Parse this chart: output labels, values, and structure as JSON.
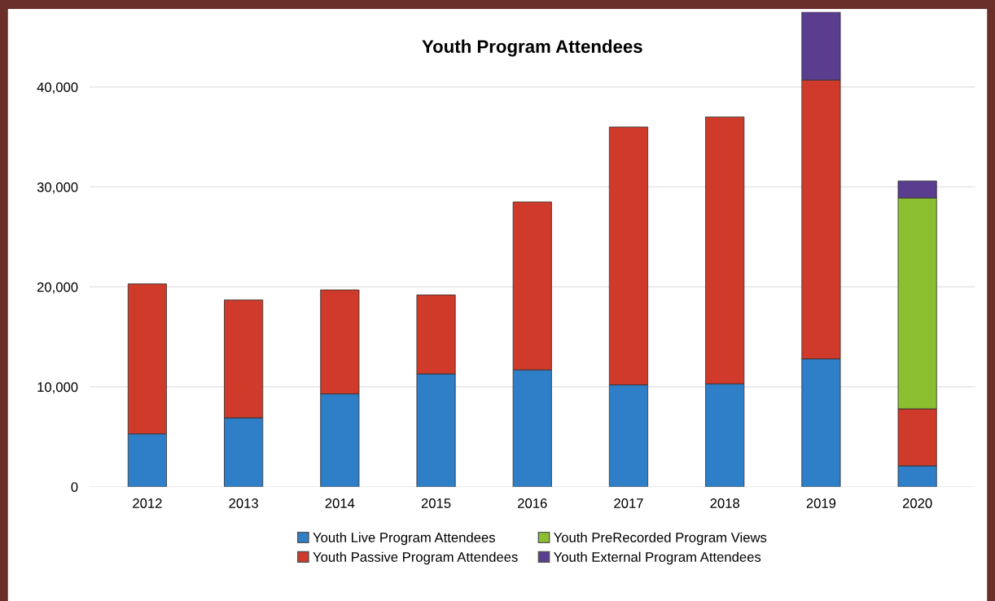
{
  "chart_data": {
    "type": "bar",
    "title": "Youth Program Attendees",
    "stacked": true,
    "categories": [
      "2012",
      "2013",
      "2014",
      "2015",
      "2016",
      "2017",
      "2018",
      "2019",
      "2020"
    ],
    "series": [
      {
        "name": "Youth Live Program Attendees",
        "color": "#2e7fc8",
        "values": [
          5300,
          6900,
          9300,
          11300,
          11700,
          10200,
          10300,
          12800,
          2100
        ]
      },
      {
        "name": "Youth Passive Program Attendees",
        "color": "#d03a2a",
        "values": [
          15000,
          11800,
          10400,
          7900,
          16800,
          25800,
          26700,
          27900,
          5700
        ]
      },
      {
        "name": "Youth PreRecorded Program Views",
        "color": "#8cbf30",
        "values": [
          null,
          null,
          null,
          null,
          null,
          null,
          null,
          null,
          21100
        ]
      },
      {
        "name": "Youth External Program Attendees",
        "color": "#5a3d8f",
        "values": [
          null,
          null,
          null,
          null,
          null,
          null,
          null,
          6800,
          1700
        ]
      }
    ],
    "ylim": [
      0,
      47500
    ],
    "yticks": [
      {
        "value": 0,
        "label": "0"
      },
      {
        "value": 10000,
        "label": "10,000"
      },
      {
        "value": 20000,
        "label": "20,000"
      },
      {
        "value": 30000,
        "label": "30,000"
      },
      {
        "value": 40000,
        "label": "40,000"
      }
    ],
    "grid": "y",
    "legend": "bottom"
  }
}
